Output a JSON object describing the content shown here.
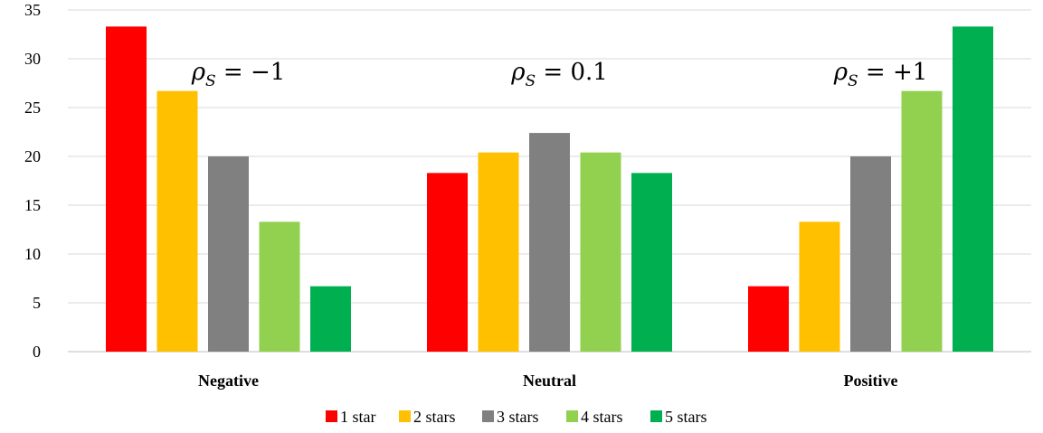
{
  "chart_data": {
    "type": "bar",
    "categories": [
      "Negative",
      "Neutral",
      "Positive"
    ],
    "series": [
      {
        "name": "1 star",
        "color": "#FF0000",
        "values": [
          33.3,
          18.3,
          6.7
        ]
      },
      {
        "name": "2 stars",
        "color": "#FFC000",
        "values": [
          26.7,
          20.4,
          13.3
        ]
      },
      {
        "name": "3 stars",
        "color": "#808080",
        "values": [
          20.0,
          22.4,
          20.0
        ]
      },
      {
        "name": "4 stars",
        "color": "#92D050",
        "values": [
          13.3,
          20.4,
          26.7
        ]
      },
      {
        "name": "5 stars",
        "color": "#00B050",
        "values": [
          6.7,
          18.3,
          33.3
        ]
      }
    ],
    "ylim": [
      0,
      35
    ],
    "yticks": [
      0,
      5,
      10,
      15,
      20,
      25,
      30,
      35
    ],
    "grid": true,
    "legend_position": "bottom",
    "annotations": [
      {
        "category": "Negative",
        "sign": "−",
        "num": "1"
      },
      {
        "category": "Neutral",
        "sign": "",
        "num": "0.1"
      },
      {
        "category": "Positive",
        "sign": "+",
        "num": "1"
      }
    ],
    "annotation_symbol": "ρ",
    "annotation_subscript": "S",
    "annotation_equals": "="
  }
}
